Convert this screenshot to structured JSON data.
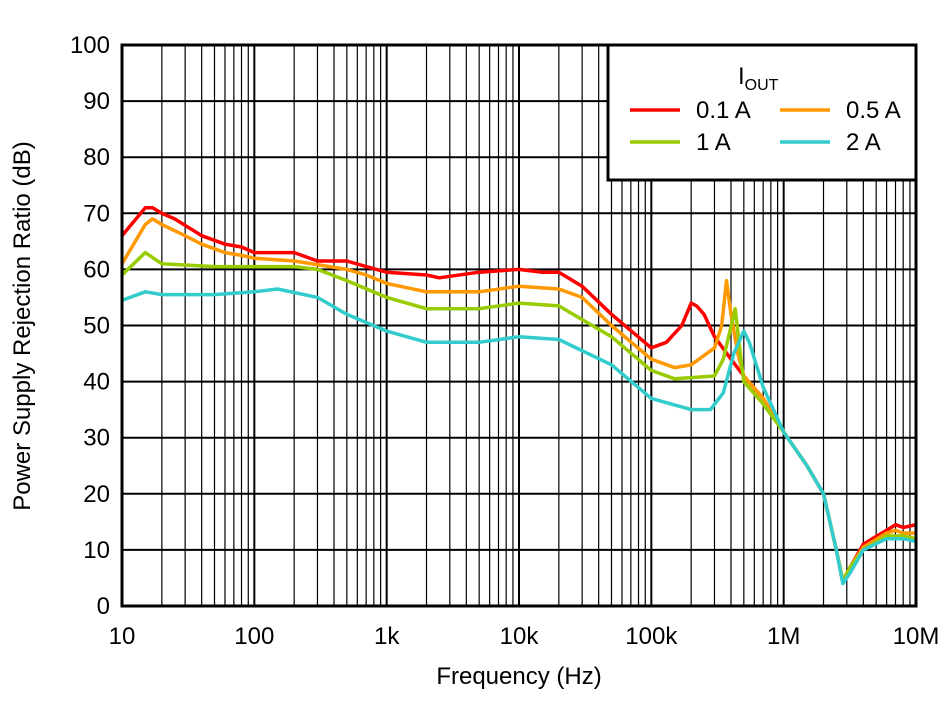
{
  "chart_data": {
    "type": "line",
    "title": "",
    "xlabel": "Frequency (Hz)",
    "ylabel": "Power Supply Rejection Ratio (dB)",
    "xscale": "log",
    "xlim": [
      10,
      10000000
    ],
    "ylim": [
      0,
      100
    ],
    "grid": true,
    "x_tick_values": [
      10,
      100,
      1000,
      10000,
      100000,
      1000000,
      10000000
    ],
    "x_tick_labels": [
      "10",
      "100",
      "1k",
      "10k",
      "100k",
      "1M",
      "10M"
    ],
    "y_tick_values": [
      0,
      10,
      20,
      30,
      40,
      50,
      60,
      70,
      80,
      90,
      100
    ],
    "y_tick_labels": [
      "0",
      "10",
      "20",
      "30",
      "40",
      "50",
      "60",
      "70",
      "80",
      "90",
      "100"
    ],
    "legend": {
      "title": "I",
      "title_sub": "OUT",
      "placement": "top-right"
    },
    "series": [
      {
        "name": "0.1 A",
        "color": "#ff0000",
        "points": [
          [
            10,
            66
          ],
          [
            15,
            71
          ],
          [
            17,
            71
          ],
          [
            20,
            70
          ],
          [
            25,
            69
          ],
          [
            40,
            66
          ],
          [
            60,
            64.5
          ],
          [
            80,
            64
          ],
          [
            100,
            63
          ],
          [
            200,
            63
          ],
          [
            300,
            61.5
          ],
          [
            500,
            61.5
          ],
          [
            700,
            60.5
          ],
          [
            1000,
            59.5
          ],
          [
            2000,
            59
          ],
          [
            2500,
            58.5
          ],
          [
            5000,
            59.5
          ],
          [
            10000,
            60
          ],
          [
            15000,
            59.5
          ],
          [
            20000,
            59.5
          ],
          [
            30000,
            57
          ],
          [
            50000,
            52
          ],
          [
            100000,
            46
          ],
          [
            130000,
            47
          ],
          [
            170000,
            50
          ],
          [
            200000,
            54
          ],
          [
            220000,
            53.5
          ],
          [
            250000,
            52
          ],
          [
            300000,
            48
          ],
          [
            400000,
            44
          ],
          [
            500000,
            41
          ],
          [
            700000,
            37
          ],
          [
            1000000,
            31
          ],
          [
            1500000,
            25
          ],
          [
            2000000,
            20
          ],
          [
            2500000,
            10
          ],
          [
            2800000,
            4.5
          ],
          [
            3200000,
            7
          ],
          [
            4000000,
            11
          ],
          [
            6000000,
            13.5
          ],
          [
            7000000,
            14.5
          ],
          [
            8000000,
            14
          ],
          [
            10000000,
            14.5
          ]
        ]
      },
      {
        "name": "0.5 A",
        "color": "#ff9900",
        "points": [
          [
            10,
            61
          ],
          [
            15,
            68
          ],
          [
            17,
            69
          ],
          [
            20,
            68
          ],
          [
            30,
            66
          ],
          [
            40,
            64.5
          ],
          [
            60,
            63
          ],
          [
            80,
            62.5
          ],
          [
            100,
            62
          ],
          [
            200,
            61.5
          ],
          [
            500,
            60
          ],
          [
            700,
            59
          ],
          [
            1000,
            57.5
          ],
          [
            2000,
            56
          ],
          [
            5000,
            56
          ],
          [
            10000,
            57
          ],
          [
            20000,
            56.5
          ],
          [
            30000,
            55
          ],
          [
            50000,
            50
          ],
          [
            100000,
            44
          ],
          [
            150000,
            42.5
          ],
          [
            200000,
            43
          ],
          [
            300000,
            46
          ],
          [
            340000,
            50
          ],
          [
            370000,
            58
          ],
          [
            400000,
            52
          ],
          [
            450000,
            45
          ],
          [
            500000,
            41
          ],
          [
            700000,
            37
          ],
          [
            1000000,
            31
          ],
          [
            1500000,
            25
          ],
          [
            2000000,
            20
          ],
          [
            2500000,
            10
          ],
          [
            2800000,
            4.5
          ],
          [
            3200000,
            7
          ],
          [
            4000000,
            10.5
          ],
          [
            6000000,
            13
          ],
          [
            7000000,
            13.5
          ],
          [
            8000000,
            13
          ],
          [
            10000000,
            13
          ]
        ]
      },
      {
        "name": "1 A",
        "color": "#99cc00",
        "points": [
          [
            10,
            59
          ],
          [
            15,
            63
          ],
          [
            20,
            61
          ],
          [
            50,
            60.5
          ],
          [
            100,
            60.5
          ],
          [
            200,
            60.5
          ],
          [
            300,
            60
          ],
          [
            500,
            58
          ],
          [
            1000,
            55
          ],
          [
            2000,
            53
          ],
          [
            5000,
            53
          ],
          [
            10000,
            54
          ],
          [
            20000,
            53.5
          ],
          [
            50000,
            48
          ],
          [
            100000,
            42
          ],
          [
            150000,
            40.5
          ],
          [
            300000,
            41
          ],
          [
            350000,
            44
          ],
          [
            430000,
            53
          ],
          [
            470000,
            45
          ],
          [
            500000,
            40
          ],
          [
            700000,
            36
          ],
          [
            1000000,
            31
          ],
          [
            1500000,
            25
          ],
          [
            2000000,
            20
          ],
          [
            2500000,
            10
          ],
          [
            2800000,
            4.5
          ],
          [
            3200000,
            7
          ],
          [
            4000000,
            10
          ],
          [
            6000000,
            12.5
          ],
          [
            8000000,
            12.5
          ],
          [
            10000000,
            12
          ]
        ]
      },
      {
        "name": "2 A",
        "color": "#33cccc",
        "points": [
          [
            10,
            54.5
          ],
          [
            15,
            56
          ],
          [
            20,
            55.5
          ],
          [
            50,
            55.5
          ],
          [
            100,
            56
          ],
          [
            150,
            56.5
          ],
          [
            300,
            55
          ],
          [
            500,
            52
          ],
          [
            1000,
            49
          ],
          [
            2000,
            47
          ],
          [
            5000,
            47
          ],
          [
            10000,
            48
          ],
          [
            20000,
            47.5
          ],
          [
            50000,
            43
          ],
          [
            100000,
            37
          ],
          [
            200000,
            35
          ],
          [
            280000,
            35
          ],
          [
            350000,
            38
          ],
          [
            420000,
            45
          ],
          [
            500000,
            49
          ],
          [
            550000,
            47
          ],
          [
            700000,
            39
          ],
          [
            1000000,
            31
          ],
          [
            1500000,
            25
          ],
          [
            2000000,
            20
          ],
          [
            2500000,
            10
          ],
          [
            2800000,
            4
          ],
          [
            3200000,
            6
          ],
          [
            4000000,
            10
          ],
          [
            6000000,
            12
          ],
          [
            8000000,
            12
          ],
          [
            10000000,
            11.5
          ]
        ]
      }
    ]
  }
}
